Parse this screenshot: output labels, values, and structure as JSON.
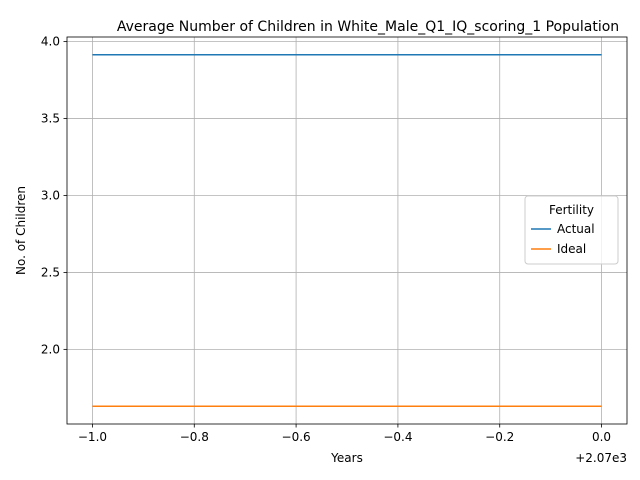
{
  "chart_data": {
    "type": "line",
    "title": "Average Number of Children in White_Male_Q1_IQ_scoring_1 Population",
    "xlabel": "Years",
    "ylabel": "No. of Children",
    "x_offset_text": "+2.07e3",
    "x": [
      2069,
      2070
    ],
    "xlim": [
      2068.95,
      2070.05
    ],
    "ylim": [
      1.515,
      4.03
    ],
    "x_ticks": [
      {
        "value": 2069.0,
        "label": "−1.0"
      },
      {
        "value": 2069.2,
        "label": "−0.8"
      },
      {
        "value": 2069.4,
        "label": "−0.6"
      },
      {
        "value": 2069.6,
        "label": "−0.4"
      },
      {
        "value": 2069.8,
        "label": "−0.2"
      },
      {
        "value": 2070.0,
        "label": "0.0"
      }
    ],
    "y_ticks": [
      {
        "value": 2.0,
        "label": "2.0"
      },
      {
        "value": 2.5,
        "label": "2.5"
      },
      {
        "value": 3.0,
        "label": "3.0"
      },
      {
        "value": 3.5,
        "label": "3.5"
      },
      {
        "value": 4.0,
        "label": "4.0"
      }
    ],
    "grid": true,
    "legend": {
      "title": "Fertility",
      "placement": "center-right"
    },
    "series": [
      {
        "name": "Actual",
        "values": [
          3.915,
          3.915
        ],
        "color": "#1f77b4"
      },
      {
        "name": "Ideal",
        "values": [
          1.63,
          1.63
        ],
        "color": "#ff7f0e"
      }
    ]
  }
}
